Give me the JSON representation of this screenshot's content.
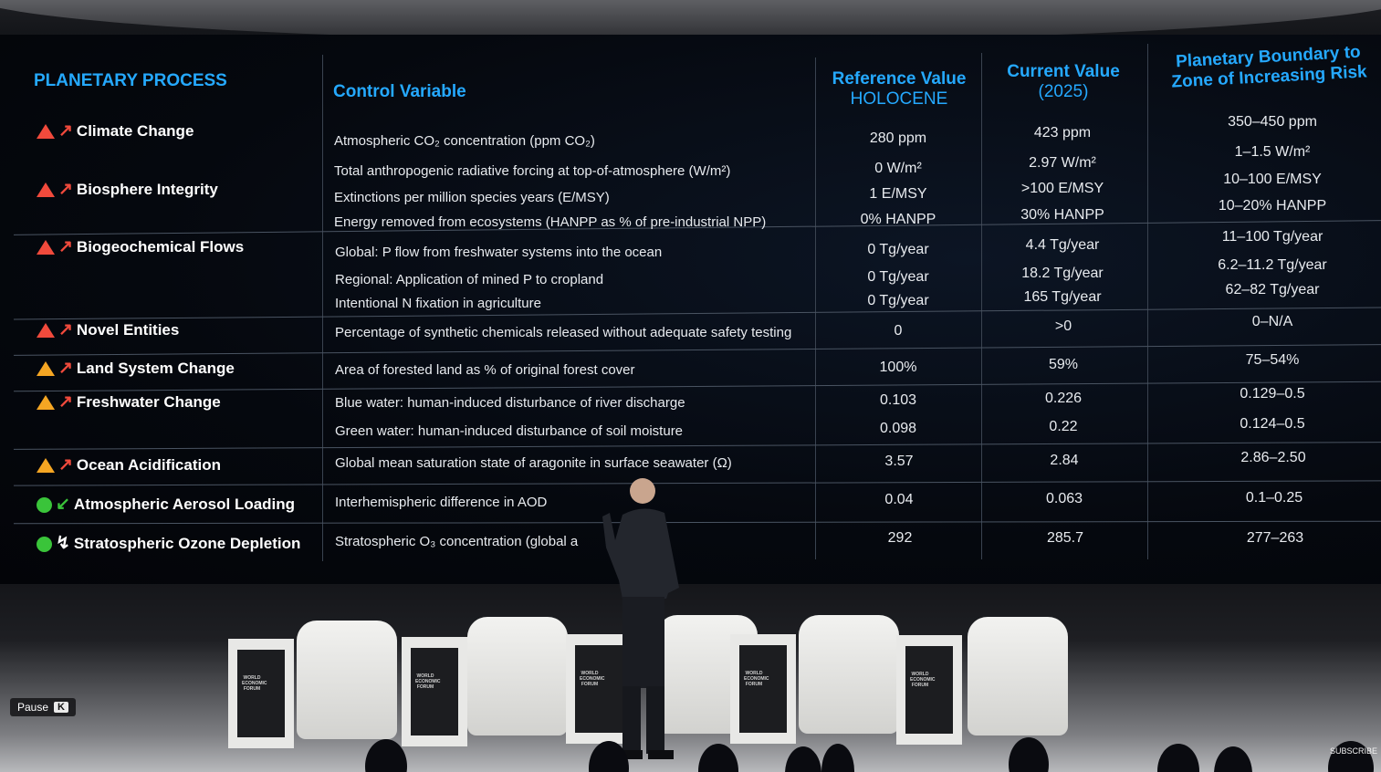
{
  "headers": {
    "process": "PLANETARY PROCESS",
    "control": "Control Variable",
    "reference_title": "Reference Value",
    "reference_sub": "HOLOCENE",
    "current_title": "Current Value",
    "current_sub": "(2025)",
    "boundary_line1": "Planetary Boundary to",
    "boundary_line2": "Zone of Increasing Risk"
  },
  "processes": [
    {
      "label": "Climate Change",
      "status": "red-triangle-icon",
      "trend": "arrow-up-right-icon"
    },
    {
      "label": "Biosphere Integrity",
      "status": "red-triangle-icon",
      "trend": "arrow-up-right-icon"
    },
    {
      "label": "Biogeochemical Flows",
      "status": "red-triangle-icon",
      "trend": "arrow-up-right-icon"
    },
    {
      "label": "Novel Entities",
      "status": "red-triangle-icon",
      "trend": "arrow-up-right-icon"
    },
    {
      "label": "Land System Change",
      "status": "amber-triangle-icon",
      "trend": "arrow-up-right-icon"
    },
    {
      "label": "Freshwater Change",
      "status": "amber-triangle-icon",
      "trend": "arrow-up-right-icon"
    },
    {
      "label": "Ocean Acidification",
      "status": "amber-triangle-icon",
      "trend": "arrow-up-right-icon"
    },
    {
      "label": "Atmospheric Aerosol Loading",
      "status": "green-circle-icon",
      "trend": "arrow-down-left-icon"
    },
    {
      "label": "Stratospheric Ozone Depletion",
      "status": "green-circle-icon",
      "trend": "arrow-recovering-icon"
    }
  ],
  "rows": [
    {
      "control": "Atmospheric CO₂ concentration (ppm CO₂)",
      "reference": "280 ppm",
      "current": "423 ppm",
      "boundary": "350–450 ppm"
    },
    {
      "control": "Total anthropogenic radiative forcing at top-of-atmosphere (W/m²)",
      "reference": "0 W/m²",
      "current": "2.97 W/m²",
      "boundary": "1–1.5 W/m²"
    },
    {
      "control": "Extinctions per million species years (E/MSY)",
      "reference": "1 E/MSY",
      "current": ">100 E/MSY",
      "boundary": "10–100 E/MSY"
    },
    {
      "control": "Energy removed from ecosystems (HANPP as % of pre-industrial NPP)",
      "reference": "0% HANPP",
      "current": "30% HANPP",
      "boundary": "10–20% HANPP"
    },
    {
      "control": "Global: P flow from freshwater systems into the ocean",
      "reference": "0 Tg/year",
      "current": "4.4 Tg/year",
      "boundary": "11–100 Tg/year"
    },
    {
      "control": "Regional: Application of mined P to cropland",
      "reference": "0 Tg/year",
      "current": "18.2 Tg/year",
      "boundary": "6.2–11.2 Tg/year"
    },
    {
      "control": "Intentional N fixation in agriculture",
      "reference": "0 Tg/year",
      "current": "165 Tg/year",
      "boundary": "62–82 Tg/year"
    },
    {
      "control": "Percentage of synthetic chemicals released without adequate safety testing",
      "reference": "0",
      "current": ">0",
      "boundary": "0–N/A"
    },
    {
      "control": "Area of forested land as % of original forest cover",
      "reference": "100%",
      "current": "59%",
      "boundary": "75–54%"
    },
    {
      "control": "Blue water: human-induced disturbance of river discharge",
      "reference": "0.103",
      "current": "0.226",
      "boundary": "0.129–0.5"
    },
    {
      "control": "Green water: human-induced disturbance of soil moisture",
      "reference": "0.098",
      "current": "0.22",
      "boundary": "0.124–0.5"
    },
    {
      "control": "Global mean saturation state of aragonite in surface seawater (Ω)",
      "reference": "3.57",
      "current": "2.84",
      "boundary": "2.86–2.50"
    },
    {
      "control": "Interhemispheric difference in AOD",
      "reference": "0.04",
      "current": "0.063",
      "boundary": "0.1–0.25"
    },
    {
      "control": "Stratospheric O₃ concentration (global a",
      "reference": "292",
      "current": "285.7",
      "boundary": "277–263"
    }
  ],
  "stage": {
    "panel_logo": "WORLD ECONOMIC FORUM"
  },
  "player": {
    "pause_label": "Pause",
    "pause_key": "K",
    "subscribe_label": "SUBSCRIBE"
  },
  "colors": {
    "header_blue": "#25a9ff",
    "status_red": "#f14a3c",
    "status_amber": "#f5a623",
    "status_green": "#3ac43a"
  }
}
